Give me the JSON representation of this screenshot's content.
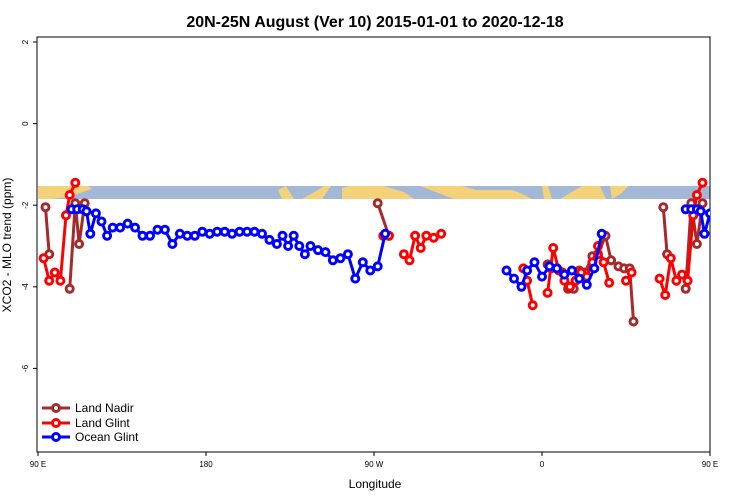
{
  "chart_data": {
    "type": "line",
    "title": "20N-25N August (Ver 10)   2015-01-01 to 2020-12-18",
    "xlabel": "Longitude",
    "ylabel": "XCO2 - MLO trend (ppm)",
    "xlim": [
      90,
      450
    ],
    "ylim": [
      -8,
      2
    ],
    "x_ticks": [
      {
        "value": 90,
        "label": "90 E"
      },
      {
        "value": 180,
        "label": "180"
      },
      {
        "value": 270,
        "label": "90 W"
      },
      {
        "value": 360,
        "label": "0"
      },
      {
        "value": 450,
        "label": "90 E"
      },
      {
        "value": 540,
        "label": "180"
      }
    ],
    "y_ticks": [
      {
        "value": 2,
        "label": "2"
      },
      {
        "value": 0,
        "label": "0"
      },
      {
        "value": -2,
        "label": "-2"
      },
      {
        "value": -4,
        "label": "-4"
      },
      {
        "value": -6,
        "label": "-6"
      }
    ],
    "legend_position": "bottom-left",
    "grid": false,
    "map_strip": {
      "ocean_color": "#a3b8d6",
      "land_color": "#f4d27a"
    },
    "series": [
      {
        "name": "Land Nadir",
        "color": "#a52a2a",
        "segments": [
          [
            [
              94,
              -2.05
            ],
            [
              96,
              -3.2
            ]
          ],
          [
            [
              107,
              -4.05
            ],
            [
              110,
              -1.95
            ],
            [
              112,
              -2.95
            ],
            [
              115,
              -1.95
            ]
          ],
          [
            [
              272,
              -1.95
            ],
            [
              278,
              -2.75
            ]
          ],
          [
            [
              363,
              -3.45
            ],
            [
              365,
              -3.55
            ],
            [
              368,
              -3.55
            ],
            [
              371,
              -3.65
            ],
            [
              374,
              -4.05
            ],
            [
              377,
              -4.05
            ],
            [
              380,
              -3.6
            ],
            [
              383,
              -3.65
            ],
            [
              387,
              -3.25
            ],
            [
              390,
              -3.2
            ],
            [
              394,
              -2.75
            ],
            [
              397,
              -3.35
            ],
            [
              401,
              -3.5
            ],
            [
              404,
              -3.55
            ],
            [
              407,
              -3.55
            ],
            [
              409,
              -4.85
            ]
          ],
          [
            [
              425,
              -2.05
            ],
            [
              427,
              -3.2
            ]
          ],
          [
            [
              437,
              -4.05
            ],
            [
              440,
              -1.95
            ],
            [
              443,
              -2.95
            ],
            [
              446,
              -1.95
            ]
          ]
        ]
      },
      {
        "name": "Land Glint",
        "color": "#ff0000",
        "segments": [
          [
            [
              93,
              -3.3
            ],
            [
              96,
              -3.85
            ],
            [
              99,
              -3.65
            ],
            [
              102,
              -3.85
            ],
            [
              105,
              -2.25
            ],
            [
              107,
              -1.75
            ],
            [
              110,
              -1.45
            ]
          ],
          [
            [
              275,
              -2.75
            ],
            [
              278,
              -2.75
            ]
          ],
          [
            [
              286,
              -3.2
            ],
            [
              289,
              -3.35
            ],
            [
              292,
              -2.75
            ],
            [
              295,
              -3.05
            ],
            [
              298,
              -2.75
            ],
            [
              302,
              -2.8
            ],
            [
              306,
              -2.7
            ]
          ],
          [
            [
              350,
              -3.55
            ],
            [
              352,
              -3.85
            ],
            [
              355,
              -4.45
            ]
          ],
          [
            [
              363,
              -4.15
            ],
            [
              366,
              -3.05
            ],
            [
              369,
              -3.6
            ],
            [
              372,
              -3.85
            ],
            [
              375,
              -4.0
            ],
            [
              378,
              -3.85
            ],
            [
              381,
              -3.65
            ],
            [
              384,
              -3.75
            ],
            [
              387,
              -3.4
            ],
            [
              390,
              -3.0
            ],
            [
              393,
              -3.4
            ],
            [
              396,
              -3.9
            ]
          ],
          [
            [
              405,
              -3.85
            ],
            [
              408,
              -3.65
            ]
          ],
          [
            [
              423,
              -3.8
            ],
            [
              426,
              -4.2
            ],
            [
              429,
              -3.3
            ],
            [
              432,
              -3.85
            ],
            [
              435,
              -3.7
            ],
            [
              438,
              -3.85
            ],
            [
              441,
              -2.25
            ],
            [
              443,
              -1.75
            ],
            [
              446,
              -1.45
            ]
          ]
        ]
      },
      {
        "name": "Ocean Glint",
        "color": "#0000ff",
        "segments": [
          [
            [
              108,
              -2.1
            ],
            [
              111,
              -2.1
            ],
            [
              114,
              -2.1
            ],
            [
              116,
              -2.15
            ],
            [
              118,
              -2.7
            ],
            [
              121,
              -2.2
            ],
            [
              124,
              -2.4
            ],
            [
              127,
              -2.75
            ],
            [
              130,
              -2.55
            ],
            [
              134,
              -2.55
            ],
            [
              138,
              -2.45
            ],
            [
              142,
              -2.55
            ],
            [
              146,
              -2.75
            ],
            [
              150,
              -2.75
            ],
            [
              154,
              -2.6
            ],
            [
              158,
              -2.6
            ],
            [
              162,
              -2.95
            ],
            [
              166,
              -2.7
            ],
            [
              170,
              -2.75
            ],
            [
              174,
              -2.75
            ],
            [
              178,
              -2.65
            ],
            [
              182,
              -2.7
            ],
            [
              186,
              -2.65
            ],
            [
              190,
              -2.65
            ],
            [
              194,
              -2.7
            ],
            [
              198,
              -2.65
            ],
            [
              202,
              -2.65
            ],
            [
              206,
              -2.65
            ],
            [
              210,
              -2.7
            ],
            [
              214,
              -2.85
            ],
            [
              218,
              -2.95
            ],
            [
              221,
              -2.75
            ],
            [
              224,
              -3.0
            ],
            [
              227,
              -2.75
            ],
            [
              230,
              -3.0
            ],
            [
              233,
              -3.2
            ],
            [
              236,
              -3.0
            ],
            [
              240,
              -3.1
            ],
            [
              244,
              -3.15
            ],
            [
              248,
              -3.35
            ],
            [
              252,
              -3.3
            ],
            [
              256,
              -3.2
            ],
            [
              260,
              -3.8
            ],
            [
              264,
              -3.4
            ],
            [
              268,
              -3.6
            ],
            [
              272,
              -3.5
            ],
            [
              276,
              -2.7
            ]
          ],
          [
            [
              341,
              -3.6
            ],
            [
              345,
              -3.8
            ],
            [
              349,
              -4.0
            ],
            [
              352,
              -3.6
            ],
            [
              356,
              -3.4
            ],
            [
              360,
              -3.75
            ],
            [
              364,
              -3.5
            ],
            [
              368,
              -3.55
            ],
            [
              372,
              -3.7
            ],
            [
              376,
              -3.6
            ],
            [
              380,
              -3.8
            ],
            [
              384,
              -3.95
            ],
            [
              388,
              -3.55
            ],
            [
              392,
              -2.7
            ]
          ],
          [
            [
              437,
              -2.1
            ],
            [
              440,
              -2.1
            ],
            [
              443,
              -2.1
            ],
            [
              445,
              -2.15
            ],
            [
              447,
              -2.7
            ],
            [
              450,
              -2.2
            ]
          ]
        ]
      }
    ]
  }
}
